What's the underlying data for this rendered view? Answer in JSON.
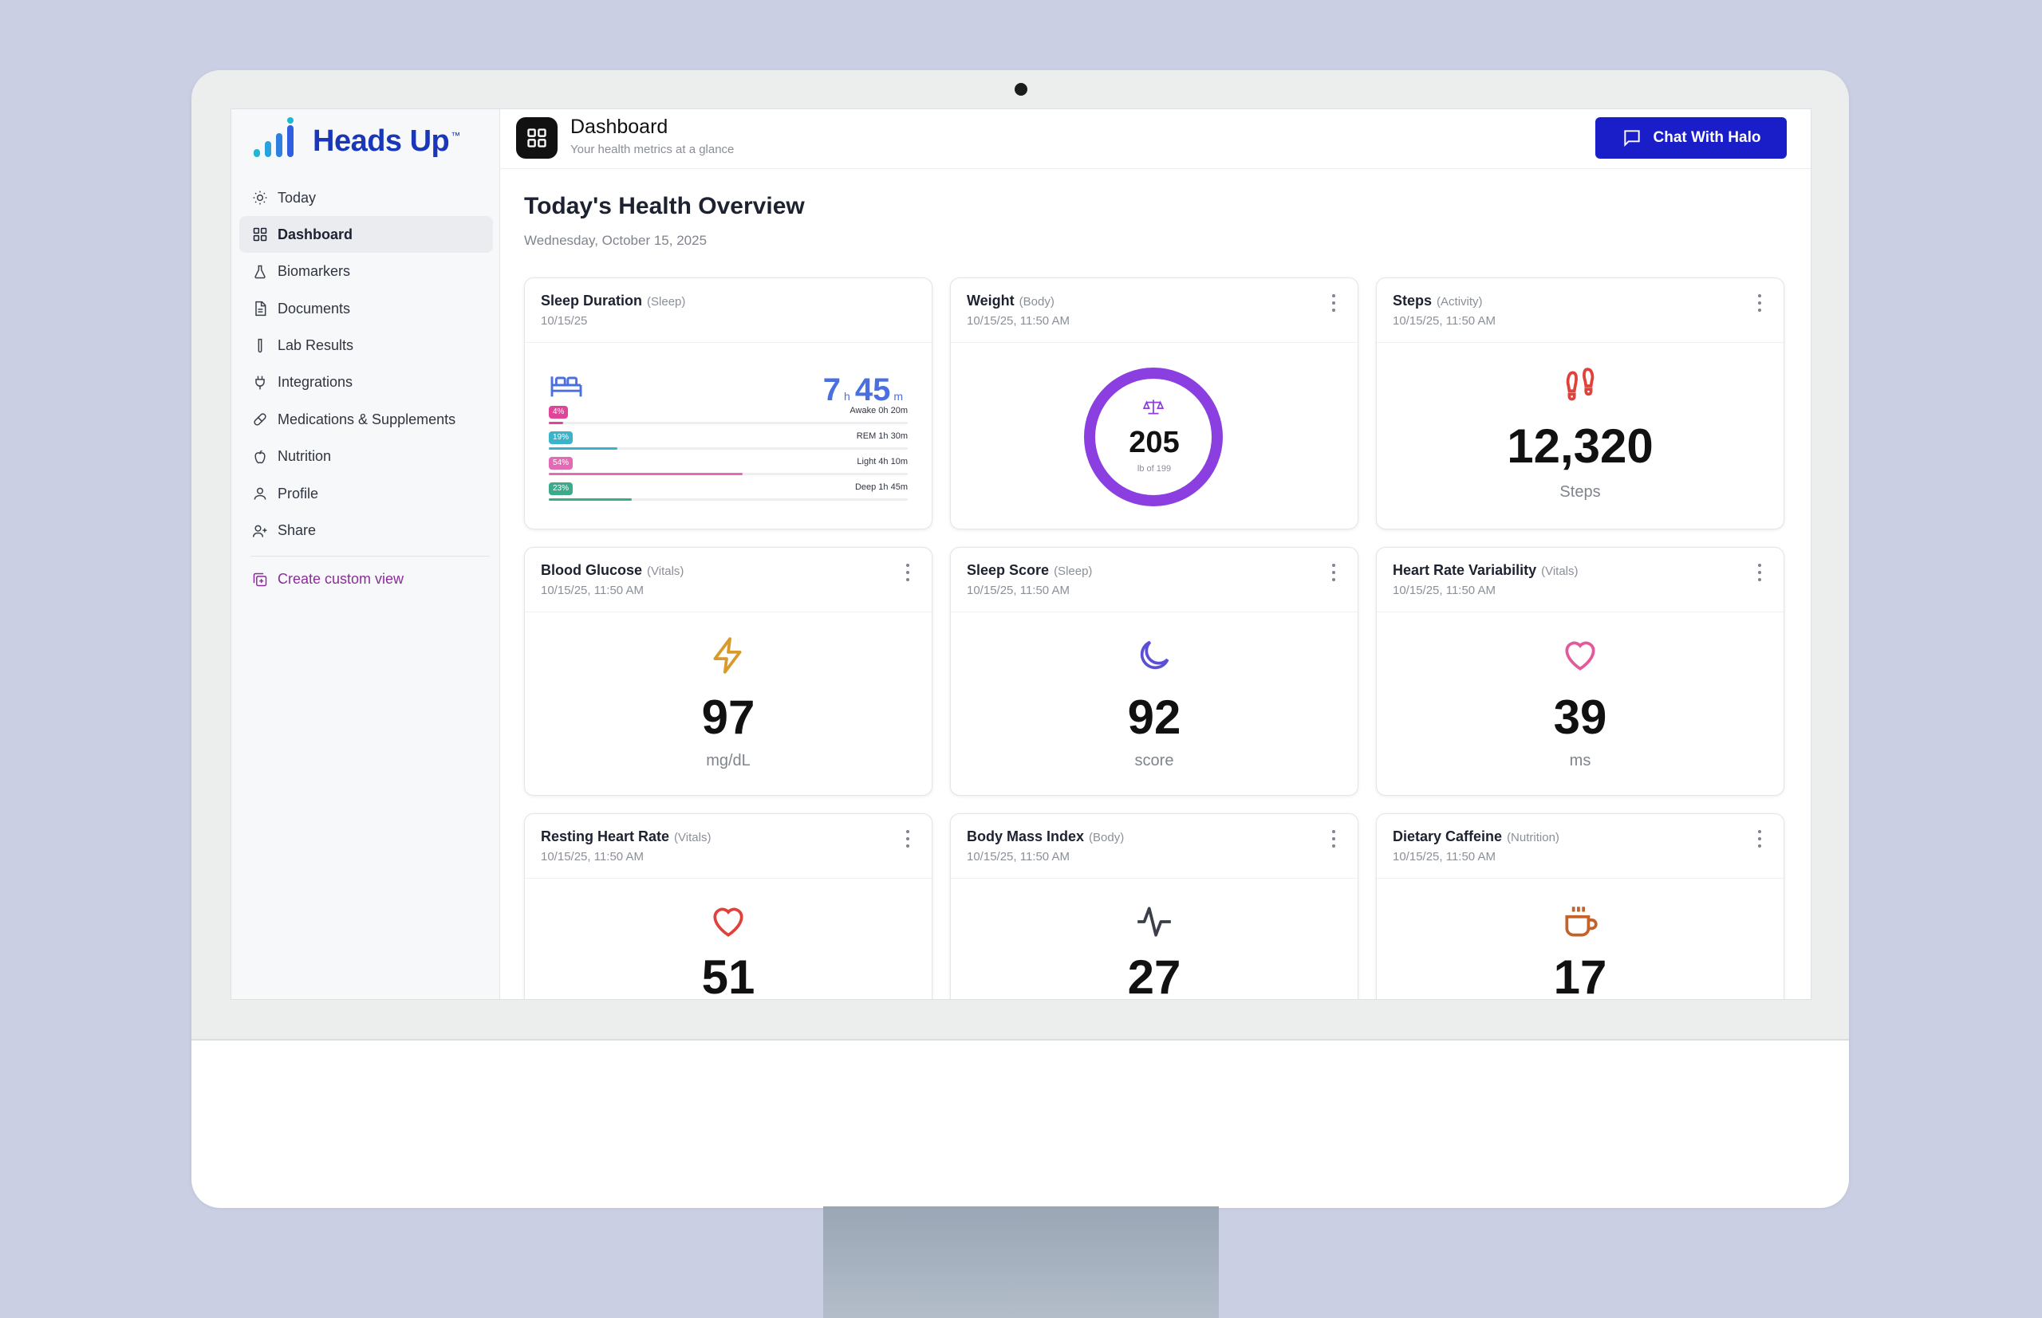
{
  "app": {
    "logo_text": "Heads Up",
    "logo_tm": "™"
  },
  "sidebar": {
    "items": [
      {
        "label": "Today",
        "icon": "sun-icon"
      },
      {
        "label": "Dashboard",
        "icon": "grid-icon",
        "active": true
      },
      {
        "label": "Biomarkers",
        "icon": "flask-icon"
      },
      {
        "label": "Documents",
        "icon": "document-icon"
      },
      {
        "label": "Lab Results",
        "icon": "test-tube-icon"
      },
      {
        "label": "Integrations",
        "icon": "plug-icon"
      },
      {
        "label": "Medications & Supplements",
        "icon": "pill-icon"
      },
      {
        "label": "Nutrition",
        "icon": "apple-icon"
      },
      {
        "label": "Profile",
        "icon": "user-icon"
      },
      {
        "label": "Share",
        "icon": "user-plus-icon"
      }
    ],
    "custom_view_label": "Create custom view"
  },
  "header": {
    "title": "Dashboard",
    "subtitle": "Your health metrics at a glance",
    "chat_button": "Chat With Halo"
  },
  "overview": {
    "title": "Today's Health Overview",
    "date": "Wednesday, October 15, 2025"
  },
  "cards": {
    "sleep_duration": {
      "title": "Sleep Duration",
      "category": "(Sleep)",
      "timestamp": "10/15/25",
      "hours": "7",
      "hours_unit": "h",
      "minutes": "45",
      "minutes_unit": "m",
      "stages": [
        {
          "pct": "4%",
          "label": "Awake 0h 20m",
          "color": "#e0459a",
          "fraction": 0.04
        },
        {
          "pct": "19%",
          "label": "REM 1h 30m",
          "color": "#3bb3c9",
          "fraction": 0.19
        },
        {
          "pct": "54%",
          "label": "Light 4h 10m",
          "color": "#e36ab4",
          "fraction": 0.54
        },
        {
          "pct": "23%",
          "label": "Deep 1h 45m",
          "color": "#3daa8c",
          "fraction": 0.23
        }
      ]
    },
    "weight": {
      "title": "Weight",
      "category": "(Body)",
      "timestamp": "10/15/25, 11:50 AM",
      "value": "205",
      "sub": "lb of 199",
      "color": "#8b3fe0"
    },
    "steps": {
      "title": "Steps",
      "category": "(Activity)",
      "timestamp": "10/15/25, 11:50 AM",
      "value": "12,320",
      "unit": "Steps",
      "color": "#e0413a"
    },
    "blood_glucose": {
      "title": "Blood Glucose",
      "category": "(Vitals)",
      "timestamp": "10/15/25, 11:50 AM",
      "value": "97",
      "unit": "mg/dL",
      "color": "#d99a2b"
    },
    "sleep_score": {
      "title": "Sleep Score",
      "category": "(Sleep)",
      "timestamp": "10/15/25, 11:50 AM",
      "value": "92",
      "unit": "score",
      "color": "#5a4fd6"
    },
    "hrv": {
      "title": "Heart Rate Variability",
      "category": "(Vitals)",
      "timestamp": "10/15/25, 11:50 AM",
      "value": "39",
      "unit": "ms",
      "color": "#e35a9a"
    },
    "resting_hr": {
      "title": "Resting Heart Rate",
      "category": "(Vitals)",
      "timestamp": "10/15/25, 11:50 AM",
      "value": "51",
      "color": "#e0413a"
    },
    "bmi": {
      "title": "Body Mass Index",
      "category": "(Body)",
      "timestamp": "10/15/25, 11:50 AM",
      "value": "27",
      "color": "#3a3f4a"
    },
    "caffeine": {
      "title": "Dietary Caffeine",
      "category": "(Nutrition)",
      "timestamp": "10/15/25, 11:50 AM",
      "value": "17",
      "color": "#c4622a"
    }
  }
}
